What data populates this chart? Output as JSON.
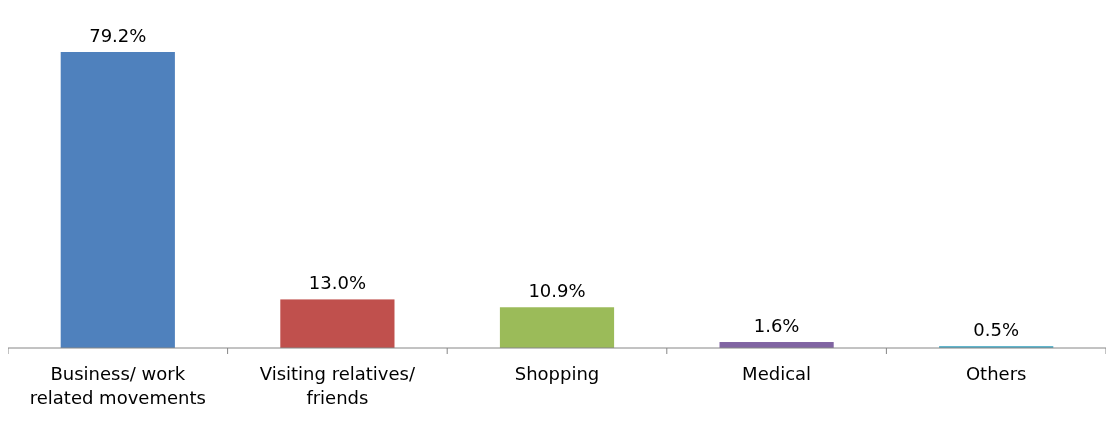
{
  "chart_data": {
    "type": "bar",
    "categories": [
      "Business/ work related movements",
      "Visiting relatives/ friends",
      "Shopping",
      "Medical",
      "Others"
    ],
    "values": [
      79.2,
      13.0,
      10.9,
      1.6,
      0.5
    ],
    "colors": [
      "#4f81bd",
      "#c0504d",
      "#9bbb59",
      "#8064a2",
      "#4bacc6"
    ],
    "value_labels": [
      "79.2%",
      "13.0%",
      "10.9%",
      "1.6%",
      "0.5%"
    ]
  }
}
